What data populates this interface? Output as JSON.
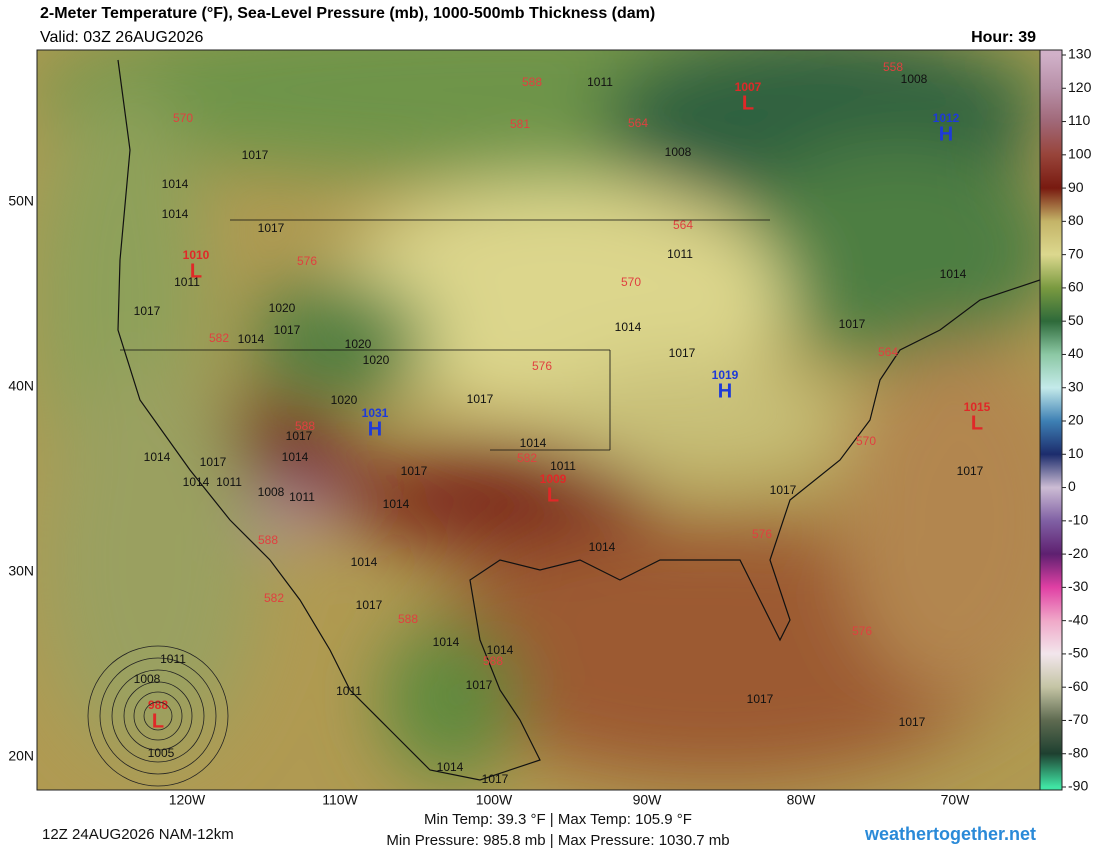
{
  "header": {
    "title": "2-Meter Temperature (°F), Sea-Level Pressure (mb), 1000-500mb Thickness (dam)",
    "valid": "Valid: 03Z 26AUG2026",
    "hour": "Hour: 39"
  },
  "colorbar": {
    "ticks": [
      130,
      120,
      110,
      100,
      90,
      80,
      70,
      60,
      50,
      40,
      30,
      20,
      10,
      0,
      -10,
      -20,
      -30,
      -40,
      -50,
      -60,
      -70,
      -80,
      -90
    ],
    "colors": [
      "#d0b0c8",
      "#b890a8",
      "#a06878",
      "#98443a",
      "#781a10",
      "#c4b468",
      "#dcd88e",
      "#7a9a40",
      "#2e6a3a",
      "#8cc8a4",
      "#c4eaea",
      "#3e80b4",
      "#1c2c6c",
      "#ccbcd4",
      "#8060a4",
      "#5e2070",
      "#e040a4",
      "#f0a8c8",
      "#f2e6ec",
      "#c4c4a4",
      "#5e6a50",
      "#1e4030",
      "#40e4a4"
    ]
  },
  "axes": {
    "lat_labels": [
      "50N",
      "40N",
      "30N",
      "20N"
    ],
    "lon_labels": [
      "120W",
      "110W",
      "100W",
      "90W",
      "80W",
      "70W"
    ]
  },
  "centers": [
    {
      "value": 1007,
      "kind": "L"
    },
    {
      "value": 1012,
      "kind": "H"
    },
    {
      "value": 1010,
      "kind": "L"
    },
    {
      "value": 1031,
      "kind": "H"
    },
    {
      "value": 1019,
      "kind": "H"
    },
    {
      "value": 1015,
      "kind": "L"
    },
    {
      "value": 1009,
      "kind": "L"
    },
    {
      "value": 988,
      "kind": "L"
    }
  ],
  "isobar_labels": [
    1011,
    1008,
    1017,
    1014,
    1014,
    1017,
    1011,
    1017,
    1020,
    1017,
    1014,
    1020,
    1020,
    1008,
    1011,
    1014,
    1014,
    1017,
    1017,
    1017,
    1020,
    1014,
    1017,
    1014,
    1017,
    1014,
    1011,
    1008,
    1011,
    1014,
    1017,
    1011,
    1014,
    1017,
    1014,
    1014,
    1017,
    1014,
    1014,
    1017,
    1011,
    1011,
    1008,
    1005,
    1017,
    1017,
    1017,
    1014,
    1017
  ],
  "thickness_labels": [
    588,
    558,
    570,
    564,
    564,
    570,
    576,
    582,
    576,
    564,
    570,
    588,
    582,
    588,
    582,
    588,
    576,
    576,
    588,
    581
  ],
  "footer": {
    "run": "12Z 24AUG2026 NAM-12km",
    "temps": "Min Temp:  39.3 °F | Max Temp: 105.9 °F",
    "pressures": "Min Pressure: 985.8 mb | Max Pressure: 1030.7 mb",
    "site": "weathertogether.net"
  }
}
